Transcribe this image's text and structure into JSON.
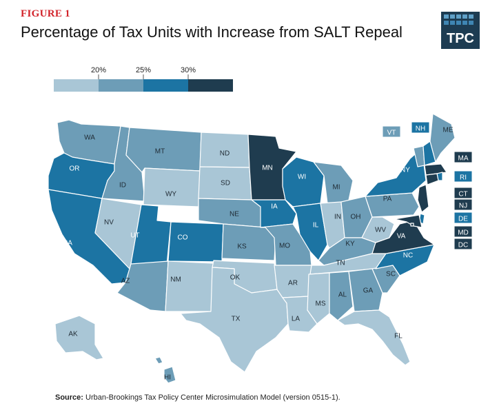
{
  "figure_label": "FIGURE 1",
  "title": "Percentage of Tax Units with Increase from SALT Repeal",
  "logo_text": "TPC",
  "legend": {
    "thresholds": [
      "20%",
      "25%",
      "30%"
    ],
    "colors": [
      "#a9c6d6",
      "#6d9db7",
      "#1c74a3",
      "#1f3c4f"
    ]
  },
  "states": [
    {
      "abbr": "WA",
      "cls": 1
    },
    {
      "abbr": "OR",
      "cls": 2
    },
    {
      "abbr": "CA",
      "cls": 2
    },
    {
      "abbr": "ID",
      "cls": 1
    },
    {
      "abbr": "NV",
      "cls": 0
    },
    {
      "abbr": "MT",
      "cls": 1
    },
    {
      "abbr": "WY",
      "cls": 0
    },
    {
      "abbr": "UT",
      "cls": 2
    },
    {
      "abbr": "CO",
      "cls": 2
    },
    {
      "abbr": "AZ",
      "cls": 1
    },
    {
      "abbr": "NM",
      "cls": 0
    },
    {
      "abbr": "ND",
      "cls": 0
    },
    {
      "abbr": "SD",
      "cls": 0
    },
    {
      "abbr": "NE",
      "cls": 1
    },
    {
      "abbr": "KS",
      "cls": 1
    },
    {
      "abbr": "OK",
      "cls": 0
    },
    {
      "abbr": "TX",
      "cls": 0
    },
    {
      "abbr": "MN",
      "cls": 3
    },
    {
      "abbr": "IA",
      "cls": 2
    },
    {
      "abbr": "MO",
      "cls": 1
    },
    {
      "abbr": "AR",
      "cls": 0
    },
    {
      "abbr": "LA",
      "cls": 0
    },
    {
      "abbr": "WI",
      "cls": 2
    },
    {
      "abbr": "IL",
      "cls": 2
    },
    {
      "abbr": "MI",
      "cls": 1
    },
    {
      "abbr": "IN",
      "cls": 0
    },
    {
      "abbr": "OH",
      "cls": 1
    },
    {
      "abbr": "KY",
      "cls": 1
    },
    {
      "abbr": "TN",
      "cls": 0
    },
    {
      "abbr": "MS",
      "cls": 0
    },
    {
      "abbr": "AL",
      "cls": 1
    },
    {
      "abbr": "GA",
      "cls": 1
    },
    {
      "abbr": "FL",
      "cls": 0
    },
    {
      "abbr": "SC",
      "cls": 1
    },
    {
      "abbr": "NC",
      "cls": 2
    },
    {
      "abbr": "VA",
      "cls": 3
    },
    {
      "abbr": "WV",
      "cls": 0
    },
    {
      "abbr": "PA",
      "cls": 1
    },
    {
      "abbr": "NY",
      "cls": 2
    },
    {
      "abbr": "VT",
      "cls": 1
    },
    {
      "abbr": "NH",
      "cls": 2
    },
    {
      "abbr": "ME",
      "cls": 1
    },
    {
      "abbr": "MA",
      "cls": 3
    },
    {
      "abbr": "RI",
      "cls": 2
    },
    {
      "abbr": "CT",
      "cls": 3
    },
    {
      "abbr": "NJ",
      "cls": 3
    },
    {
      "abbr": "DE",
      "cls": 2
    },
    {
      "abbr": "MD",
      "cls": 3
    },
    {
      "abbr": "DC",
      "cls": 3
    },
    {
      "abbr": "AK",
      "cls": 0
    },
    {
      "abbr": "HI",
      "cls": 1
    }
  ],
  "source": {
    "label": "Source:",
    "text": "Urban-Brookings Tax Policy Center Microsimulation Model (version 0515-1)."
  }
}
